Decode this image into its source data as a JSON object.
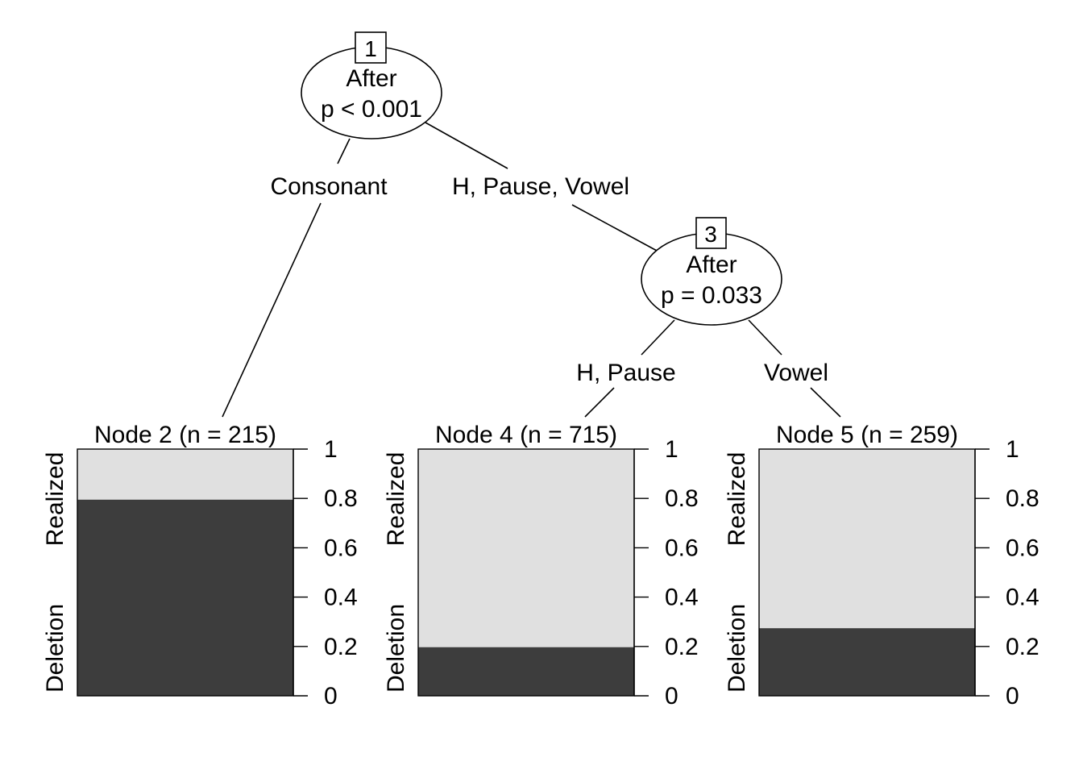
{
  "tree": {
    "inner_nodes": [
      {
        "id": "1",
        "variable": "After",
        "p_label": "p < 0.001"
      },
      {
        "id": "3",
        "variable": "After",
        "p_label": "p = 0.033"
      }
    ],
    "edges": [
      {
        "from": "1",
        "to": "2",
        "label": "Consonant"
      },
      {
        "from": "1",
        "to": "3",
        "label": "H, Pause, Vowel"
      },
      {
        "from": "3",
        "to": "4",
        "label": "H, Pause"
      },
      {
        "from": "3",
        "to": "5",
        "label": "Vowel"
      }
    ],
    "terminal_nodes": [
      {
        "id": "2",
        "title": "Node 2 (n = 215)",
        "n": 215,
        "deletion_share": 0.795
      },
      {
        "id": "4",
        "title": "Node 4 (n = 715)",
        "n": 715,
        "deletion_share": 0.197
      },
      {
        "id": "5",
        "title": "Node 5 (n = 259)",
        "n": 259,
        "deletion_share": 0.274
      }
    ],
    "categories": [
      "Deletion",
      "Realized"
    ],
    "axis_ticks": [
      "0",
      "0.2",
      "0.4",
      "0.6",
      "0.8",
      "1"
    ],
    "colors": {
      "deletion": "#3d3d3d",
      "realized": "#e0e0e0"
    }
  }
}
